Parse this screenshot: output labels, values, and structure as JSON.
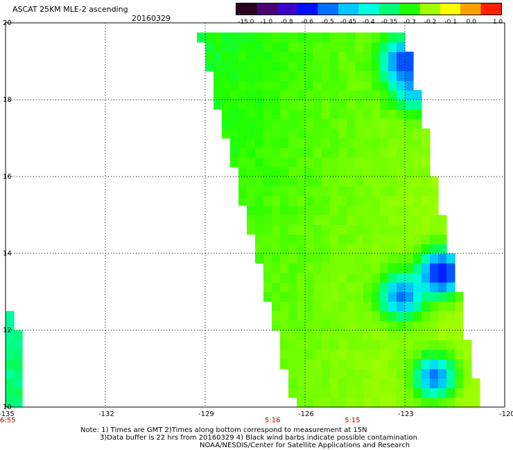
{
  "header": {
    "title": "ASCAT 25KM MLE-2 ascending",
    "date": "20160329"
  },
  "colorbar": {
    "labels": [
      "-15.0",
      "-1.0",
      "-0.8",
      "-0.6",
      "-0.5",
      "-0.45",
      "-0.4",
      "-0.35",
      "-0.3",
      "-0.2",
      "-0.1",
      "0.0",
      "1.0"
    ],
    "colors": [
      "#2a001e",
      "#4a0070",
      "#3a00c8",
      "#0010ff",
      "#0070ff",
      "#00c8ff",
      "#00ffdc",
      "#00ff78",
      "#20ff00",
      "#a0ff00",
      "#ffff00",
      "#ffa000",
      "#ff2000"
    ]
  },
  "chart_data": {
    "type": "heatmap",
    "title": "ASCAT 25KM MLE-2 ascending",
    "date": "20160329",
    "xlim": [
      -135,
      -120
    ],
    "ylim": [
      10,
      20
    ],
    "x_ticks": [
      "-135",
      "-132",
      "-129",
      "-126",
      "-123",
      "-120"
    ],
    "y_ticks": [
      "10",
      "12",
      "14",
      "16",
      "18",
      "20"
    ],
    "time_labels": [
      {
        "lon": -135,
        "text": "6:55"
      },
      {
        "lon": -127,
        "text": "5:16"
      },
      {
        "lon": -124.6,
        "text": "5:15"
      }
    ],
    "swaths": [
      {
        "name": "main",
        "typical_value": -0.25,
        "bounds": [
          [
            -129.2,
            19.8
          ],
          [
            -123.0,
            19.8
          ],
          [
            -120.7,
            10.0
          ],
          [
            -126.3,
            10.0
          ]
        ]
      },
      {
        "name": "left-edge",
        "typical_value": -0.25,
        "bounds": [
          [
            -135.0,
            12.6
          ],
          [
            -134.7,
            12.6
          ],
          [
            -134.4,
            10.0
          ],
          [
            -135.0,
            10.0
          ]
        ]
      }
    ],
    "low_value_features": [
      {
        "lon": -123.1,
        "lat": 12.9,
        "value": -0.5
      },
      {
        "lon": -122.1,
        "lat": 10.8,
        "value": -0.5
      },
      {
        "lon": -122.7,
        "lat": 18.3,
        "value": -0.45
      },
      {
        "lon": -121.9,
        "lat": 13.5,
        "value": -0.6
      },
      {
        "lon": -123.0,
        "lat": 19.0,
        "value": -0.55
      }
    ]
  },
  "footer": {
    "note1": "Note: 1) Times are GMT 2)Times along bottom correspond to measurement at 15N",
    "note2": "3)Data buffer is 22 hrs from 20160329 4) Black wind barbs indicate possible contamination",
    "note3": "NOAA/NESDIS/Center for Satellite Applications and Research"
  }
}
